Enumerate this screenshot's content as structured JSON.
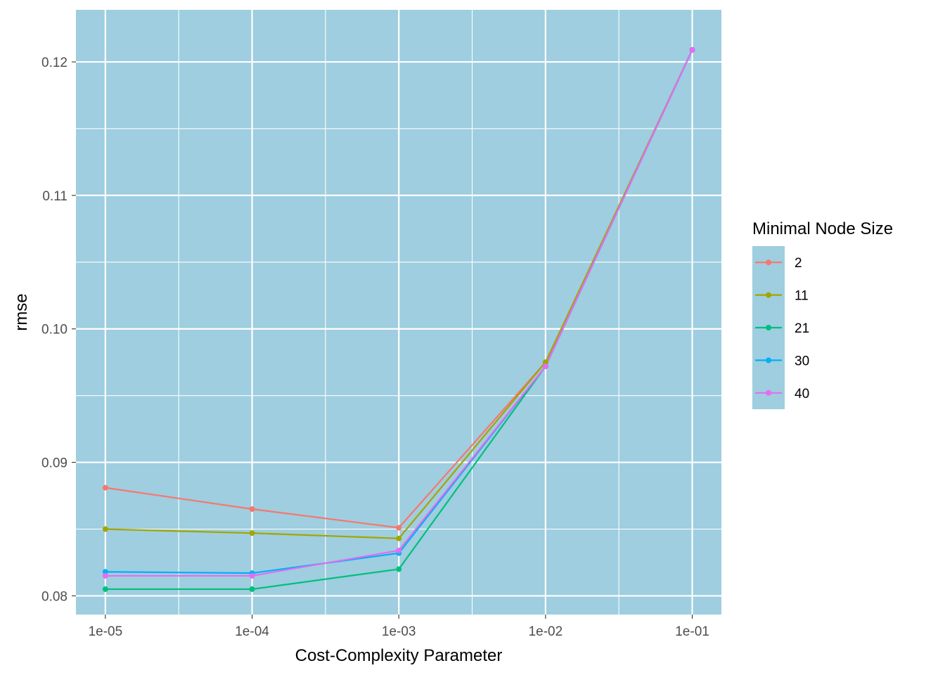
{
  "chart_data": {
    "type": "line",
    "xlabel": "Cost-Complexity Parameter",
    "ylabel": "rmse",
    "x_scale": "log10",
    "x": [
      1e-05,
      0.0001,
      0.001,
      0.01,
      0.1
    ],
    "x_tick_labels": [
      "1e-05",
      "1e-04",
      "1e-03",
      "1e-02",
      "1e-01"
    ],
    "xlim": [
      6.3e-06,
      0.158
    ],
    "y_ticks": [
      0.08,
      0.09,
      0.1,
      0.11,
      0.12
    ],
    "y_tick_labels": [
      "0.08",
      "0.09",
      "0.10",
      "0.11",
      "0.12"
    ],
    "ylim": [
      0.0786,
      0.1239
    ],
    "grid": true,
    "panel_background": "#9ecedf",
    "legend": {
      "title": "Minimal Node Size",
      "position": "right",
      "key_background": "#9ecedf"
    },
    "series": [
      {
        "name": " 2",
        "color": "#f8766d",
        "values": [
          0.0881,
          0.0865,
          0.0851,
          0.0975,
          0.1209
        ]
      },
      {
        "name": "11",
        "color": "#a3a500",
        "values": [
          0.085,
          0.0847,
          0.0843,
          0.0975,
          0.1209
        ]
      },
      {
        "name": "21",
        "color": "#00bf7d",
        "values": [
          0.0805,
          0.0805,
          0.082,
          0.0972,
          0.1209
        ]
      },
      {
        "name": "30",
        "color": "#00b0f6",
        "values": [
          0.0818,
          0.0817,
          0.0832,
          0.0972,
          0.1209
        ]
      },
      {
        "name": "40",
        "color": "#e76bf3",
        "values": [
          0.0815,
          0.0815,
          0.0834,
          0.0972,
          0.1209
        ]
      }
    ]
  }
}
